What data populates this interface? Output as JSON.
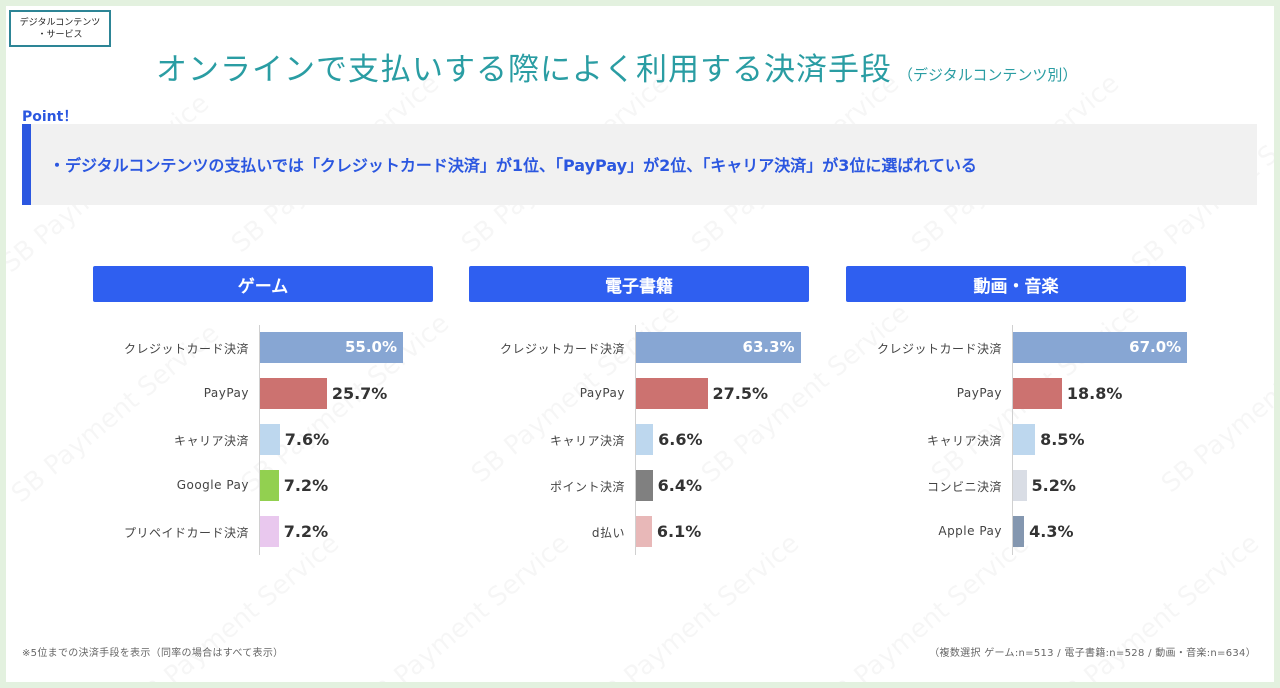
{
  "corner_tag": {
    "line1": "デジタルコンテンツ",
    "line2": "・サービス"
  },
  "title": {
    "main": "オンラインで支払いする際によく利用する決済手段",
    "sub": "（デジタルコンテンツ別）"
  },
  "point": {
    "label": "Point！",
    "text": "・デジタルコンテンツの支払いでは「クレジットカード決済」が1位、「PayPay」が2位、「キャリア決済」が3位に選ばれている"
  },
  "watermark": "SB Payment Service",
  "footnote_left": "※5位までの決済手段を表示（同率の場合はすべて表示）",
  "footnote_right": "（複数選択 ゲーム:n=513 / 電子書籍:n=528 / 動画・音楽:n=634）",
  "chart_data": [
    {
      "type": "bar",
      "orientation": "horizontal",
      "title": "ゲーム",
      "unit": "%",
      "categories": [
        "クレジットカード決済",
        "PayPay",
        "キャリア決済",
        "Google Pay",
        "プリペイドカード決済"
      ],
      "values": [
        55.0,
        25.7,
        7.6,
        7.2,
        7.2
      ],
      "labels": [
        "55.0%",
        "25.7%",
        "7.6%",
        "7.2%",
        "7.2%"
      ],
      "colors": [
        "#87a6d3",
        "#cc7270",
        "#bdd7ee",
        "#92d050",
        "#e9c8ee"
      ],
      "xlim": [
        0,
        100
      ]
    },
    {
      "type": "bar",
      "orientation": "horizontal",
      "title": "電子書籍",
      "unit": "%",
      "categories": [
        "クレジットカード決済",
        "PayPay",
        "キャリア決済",
        "ポイント決済",
        "d払い"
      ],
      "values": [
        63.3,
        27.5,
        6.6,
        6.4,
        6.1
      ],
      "labels": [
        "63.3%",
        "27.5%",
        "6.6%",
        "6.4%",
        "6.1%"
      ],
      "colors": [
        "#87a6d3",
        "#cc7270",
        "#bdd7ee",
        "#808080",
        "#e8b8b8"
      ],
      "xlim": [
        0,
        100
      ]
    },
    {
      "type": "bar",
      "orientation": "horizontal",
      "title": "動画・音楽",
      "unit": "%",
      "categories": [
        "クレジットカード決済",
        "PayPay",
        "キャリア決済",
        "コンビニ決済",
        "Apple Pay"
      ],
      "values": [
        67.0,
        18.8,
        8.5,
        5.2,
        4.3
      ],
      "labels": [
        "67.0%",
        "18.8%",
        "8.5%",
        "5.2%",
        "4.3%"
      ],
      "colors": [
        "#87a6d3",
        "#cc7270",
        "#bdd7ee",
        "#d9dde5",
        "#8497b0"
      ],
      "xlim": [
        0,
        100
      ]
    }
  ]
}
